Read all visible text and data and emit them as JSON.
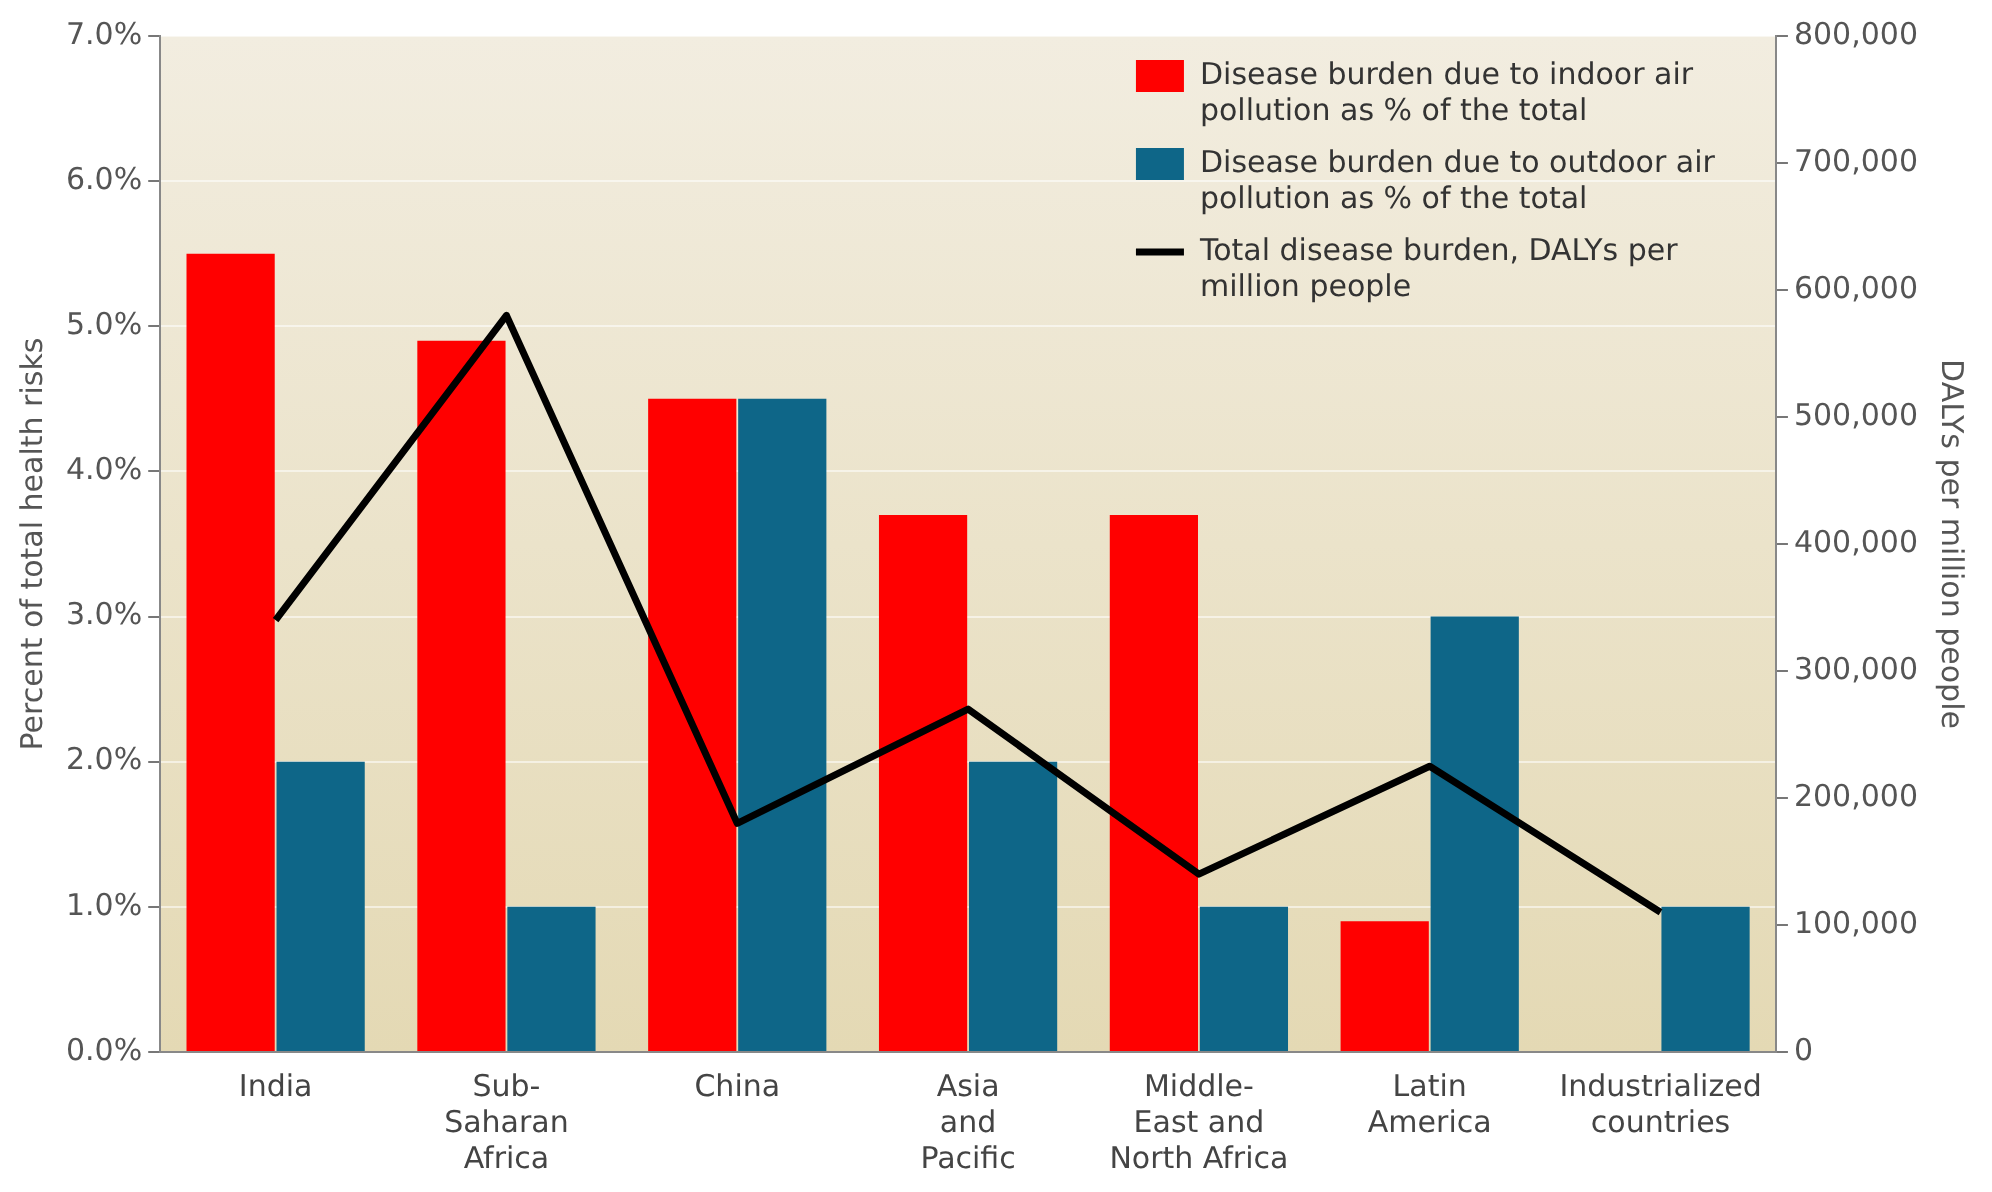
{
  "chart_data": {
    "type": "bar",
    "ylabel": "Percent of total health risks",
    "y2label": "DALYs per million people",
    "categories": [
      "India",
      "Sub-\nSaharan\nAfrica",
      "China",
      "Asia\nand\nPacific",
      "Middle-\nEast and\nNorth Africa",
      "Latin\nAmerica",
      "Industrialized\ncountries"
    ],
    "series": [
      {
        "name": "Disease burden due to indoor air pollution as % of the total",
        "color": "#ff0000",
        "values": [
          5.5,
          4.9,
          4.5,
          3.7,
          3.7,
          0.9,
          null
        ]
      },
      {
        "name": "Disease burden due to outdoor air pollution as % of the total",
        "color": "#0e6688",
        "values": [
          2.0,
          1.0,
          4.5,
          2.0,
          1.0,
          3.0,
          1.0
        ]
      },
      {
        "name": "Total disease burden, DALYs per million people",
        "type": "line",
        "axis": "y2",
        "color": "#000000",
        "values": [
          340000,
          580000,
          180000,
          270000,
          140000,
          225000,
          110000
        ]
      }
    ],
    "ylim": [
      0,
      7
    ],
    "yticks": [
      {
        "value": 0,
        "label": "0.0%"
      },
      {
        "value": 1,
        "label": "1.0%"
      },
      {
        "value": 2,
        "label": "2.0%"
      },
      {
        "value": 3,
        "label": "3.0%"
      },
      {
        "value": 4,
        "label": "4.0%"
      },
      {
        "value": 5,
        "label": "5.0%"
      },
      {
        "value": 6,
        "label": "6.0%"
      },
      {
        "value": 7,
        "label": "7.0%"
      }
    ],
    "y2lim": [
      0,
      800000
    ],
    "y2ticks": [
      0,
      {
        "value": 100000,
        "label": "100,000"
      },
      {
        "value": 200000,
        "label": "200,000"
      },
      {
        "value": 300000,
        "label": "300,000"
      },
      {
        "value": 400000,
        "label": "400,000"
      },
      {
        "value": 500000,
        "label": "500,000"
      },
      {
        "value": 600000,
        "label": "600,000"
      },
      {
        "value": 700000,
        "label": "700,000"
      },
      {
        "value": 800000,
        "label": "800,000"
      }
    ],
    "grid": "y",
    "legend": "top right",
    "marker": "none"
  }
}
